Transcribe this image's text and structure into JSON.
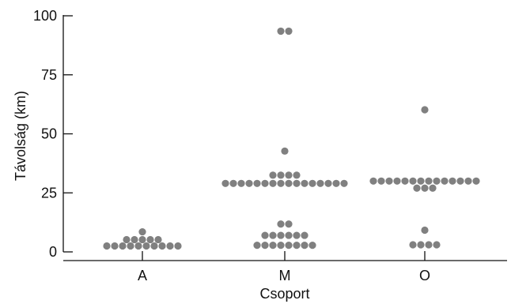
{
  "chart_data": {
    "type": "scatter",
    "subtype": "dot-strip",
    "xlabel": "Csoport",
    "ylabel": "Távolság (km)",
    "categories": [
      "A",
      "M",
      "O"
    ],
    "ylim": [
      0,
      100
    ],
    "yticks": [
      0,
      25,
      50,
      75,
      100
    ],
    "grid": false,
    "legend": "none",
    "marker_color": "#808080",
    "series": [
      {
        "category": "A",
        "points": [
          {
            "y": 8.5,
            "n": 1
          },
          {
            "y": 5.2,
            "n": 5
          },
          {
            "y": 2.5,
            "n": 10
          }
        ]
      },
      {
        "category": "M",
        "points": [
          {
            "y": 93.5,
            "n": 2
          },
          {
            "y": 42.7,
            "n": 1
          },
          {
            "y": 32.5,
            "n": 4
          },
          {
            "y": 29.0,
            "n": 16
          },
          {
            "y": 11.8,
            "n": 2
          },
          {
            "y": 7.0,
            "n": 6
          },
          {
            "y": 2.8,
            "n": 8
          }
        ]
      },
      {
        "category": "O",
        "points": [
          {
            "y": 60.2,
            "n": 1
          },
          {
            "y": 30.0,
            "n": 14
          },
          {
            "y": 27.0,
            "n": 3
          },
          {
            "y": 9.2,
            "n": 1
          },
          {
            "y": 3.0,
            "n": 4
          }
        ]
      }
    ]
  }
}
